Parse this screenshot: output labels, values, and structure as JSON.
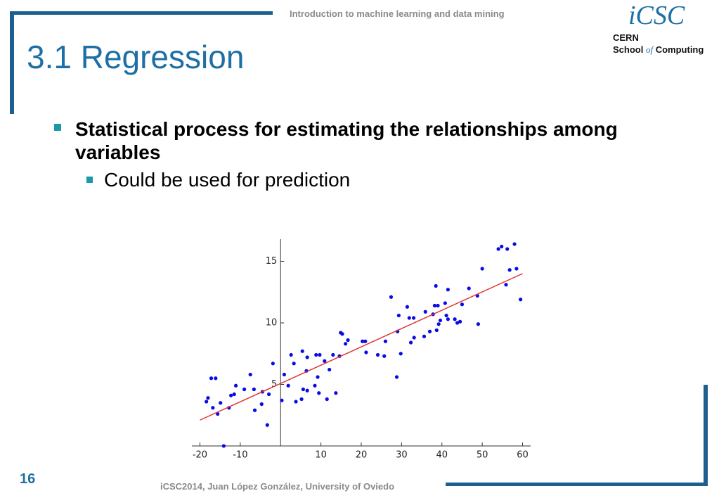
{
  "header": {
    "course": "Introduction to machine learning and data mining",
    "title": "3.1 Regression"
  },
  "logo": {
    "name": "iCSC",
    "line1": "CERN",
    "line2a": "School",
    "line2b": "of",
    "line2c": "Computing"
  },
  "bullets": [
    {
      "text": "Statistical process for estimating the relationships among variables",
      "sub": [
        "Could be used for prediction"
      ]
    }
  ],
  "footer": {
    "page": "16",
    "credit": "iCSC2014, Juan López González, University of Oviedo"
  },
  "chart_data": {
    "type": "scatter",
    "color": "#0a0ae6",
    "x": [
      -18.4,
      -18,
      -17.2,
      -16.1,
      -16.8,
      -15.6,
      -14.9,
      -14.1,
      -12.8,
      -12.3,
      -11.5,
      -11.1,
      -9,
      -7.5,
      -6.6,
      -6.4,
      -4.7,
      -4.5,
      -3.3,
      -2.9,
      -1.9,
      0.3,
      0.9,
      1.9,
      2.6,
      3.3,
      3.8,
      5.4,
      5.2,
      5.6,
      6.4,
      6.6,
      6.6,
      8.5,
      8.8,
      9.2,
      9.7,
      9.5,
      10.9,
      11.5,
      12.1,
      13,
      13.7,
      14.6,
      14.9,
      15.3,
      16.1,
      16.7,
      20.3,
      21,
      21.2,
      24.1,
      25.7,
      26,
      27.4,
      28.8,
      29,
      29.3,
      29.8,
      31.4,
      31.9,
      32.3,
      33,
      33.1,
      35.6,
      35.9,
      37,
      37.8,
      38.2,
      38.5,
      38.7,
      39,
      39.2,
      39.6,
      40.8,
      41.1,
      41.5,
      41.5,
      43.2,
      43.8,
      44.5,
      45,
      46.7,
      48.8,
      49,
      50,
      54,
      54.8,
      56.2,
      55.9,
      56.8,
      58,
      58.5,
      59.5
    ],
    "y": [
      3.6,
      3.9,
      5.5,
      5.5,
      3.1,
      2.6,
      3.5,
      0,
      3.1,
      4.1,
      4.2,
      4.9,
      4.6,
      5.8,
      4.6,
      2.9,
      3.4,
      4.4,
      1.7,
      4.2,
      6.7,
      3.7,
      5.8,
      4.9,
      7.4,
      6.7,
      3.6,
      7.7,
      3.8,
      4.6,
      6.1,
      7.2,
      4.5,
      4.9,
      7.4,
      5.6,
      7.4,
      4.3,
      6.9,
      3.8,
      6.2,
      7.4,
      4.3,
      7.3,
      9.2,
      9.1,
      8.3,
      8.6,
      8.5,
      8.5,
      7.6,
      7.4,
      7.3,
      8.5,
      12.1,
      5.6,
      9.3,
      10.6,
      7.5,
      11.3,
      10.4,
      8.4,
      10.4,
      8.8,
      8.9,
      10.9,
      9.3,
      10.7,
      11.4,
      13,
      9.4,
      11.4,
      9.9,
      10.2,
      11.6,
      10.6,
      12.7,
      10.3,
      10.3,
      10,
      10.1,
      11.5,
      12.8,
      12.2,
      9.9,
      14.4,
      16,
      16.2,
      16,
      13.1,
      14.3,
      16.4,
      14.4,
      11.9
    ],
    "fit": {
      "x": [
        -20,
        60
      ],
      "y": [
        2.1,
        14.0
      ],
      "color": "#e03535"
    },
    "xlim": [
      -22,
      62
    ],
    "ylim": [
      0,
      16.8
    ],
    "xticks": [
      -20,
      -10,
      10,
      20,
      30,
      40,
      50,
      60
    ],
    "yticks": [
      5,
      10,
      15
    ]
  }
}
